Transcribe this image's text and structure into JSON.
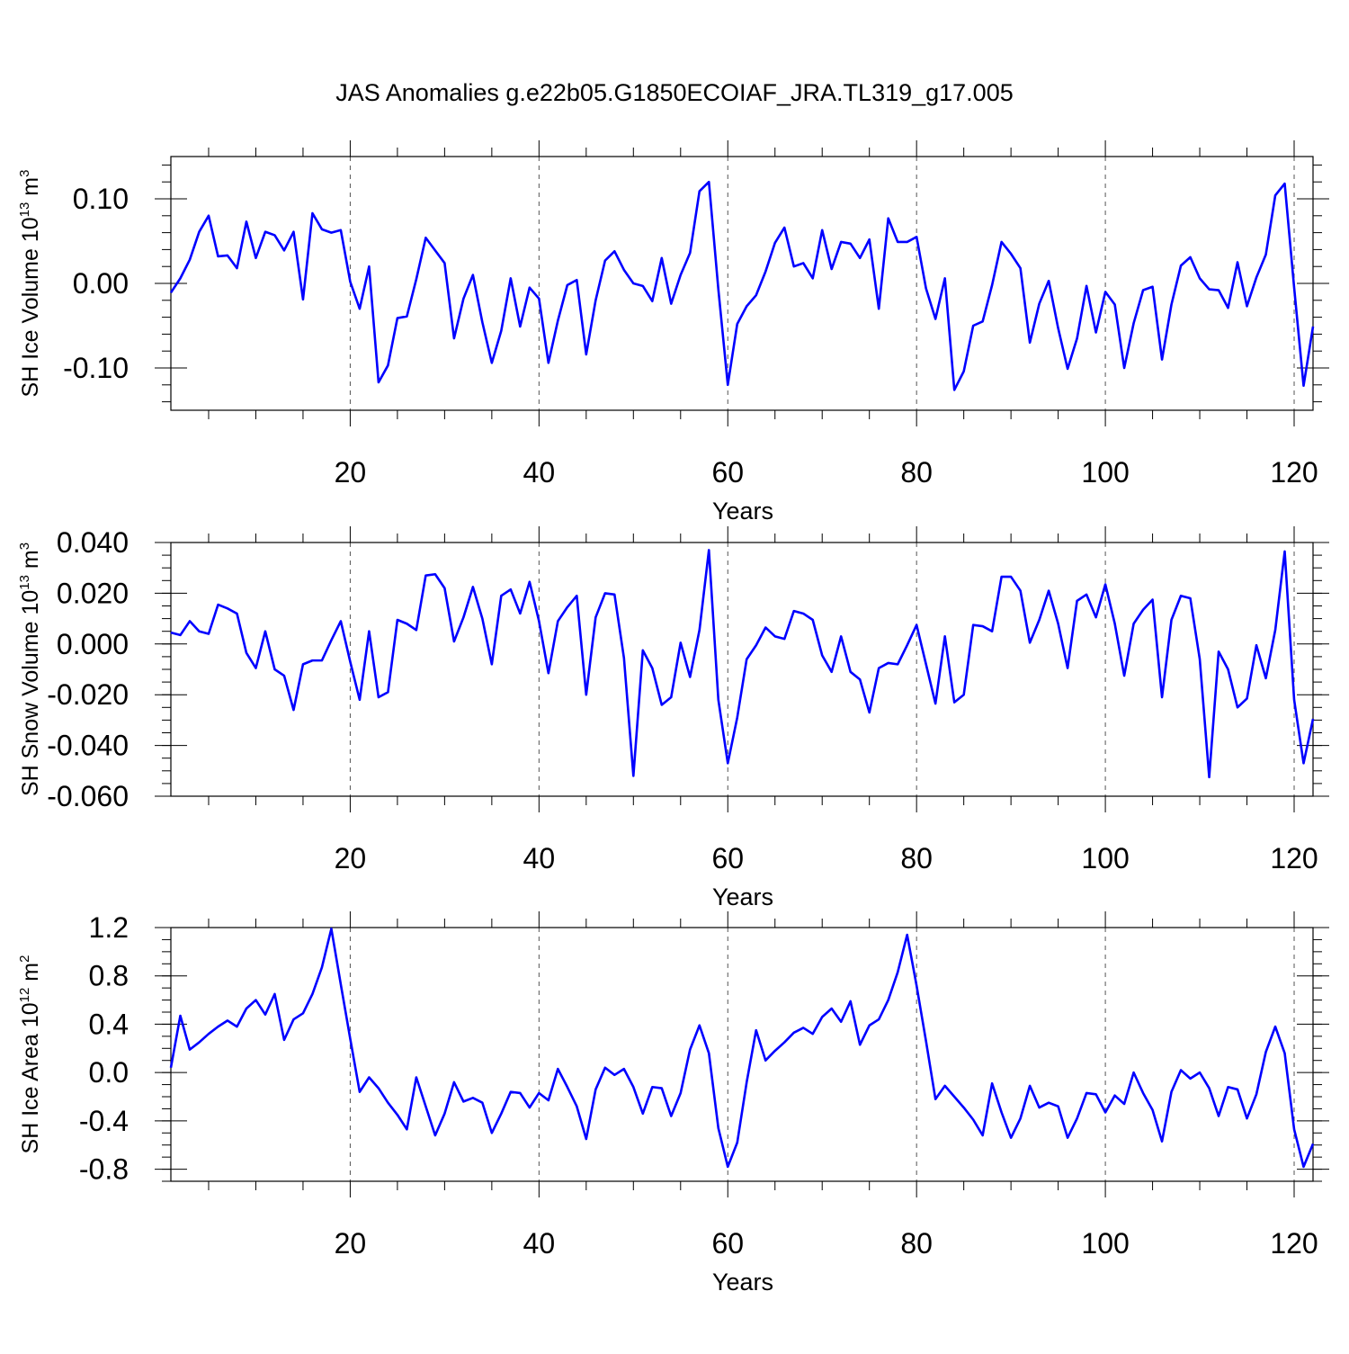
{
  "title": "JAS Anomalies g.e22b05.G1850ECOIAF_JRA.TL319_g17.005",
  "colors": {
    "series": "#0000ff",
    "axis": "#000000",
    "grid": "#555555"
  },
  "chart_data": [
    {
      "type": "line",
      "ylabel_main": "SH Ice Volume 10",
      "ylabel_exp": "13",
      "ylabel_unit": "m",
      "ylabel_unit_exp": "3",
      "xlabel": "Years",
      "xlim": [
        1,
        122
      ],
      "ylim": [
        -0.15,
        0.15
      ],
      "xticks": [
        20,
        40,
        60,
        80,
        100,
        120
      ],
      "yticks": [
        -0.1,
        0.0,
        0.1
      ],
      "ytick_labels": [
        "-0.10",
        "0.00",
        "0.10"
      ],
      "yminor_step": 0.02,
      "x_start": 1,
      "values": [
        -0.011,
        0.006,
        0.028,
        0.061,
        0.08,
        0.032,
        0.033,
        0.018,
        0.073,
        0.03,
        0.061,
        0.057,
        0.039,
        0.061,
        -0.019,
        0.083,
        0.064,
        0.06,
        0.063,
        0.002,
        -0.03,
        0.02,
        -0.117,
        -0.097,
        -0.041,
        -0.039,
        0.005,
        0.054,
        0.039,
        0.024,
        -0.065,
        -0.018,
        0.01,
        -0.046,
        -0.094,
        -0.056,
        0.006,
        -0.051,
        -0.005,
        -0.018,
        -0.094,
        -0.044,
        -0.002,
        0.004,
        -0.084,
        -0.02,
        0.027,
        0.038,
        0.016,
        0.0,
        -0.003,
        -0.021,
        0.03,
        -0.024,
        0.01,
        0.036,
        0.109,
        0.12,
        -0.007,
        -0.12,
        -0.048,
        -0.027,
        -0.014,
        0.014,
        0.048,
        0.066,
        0.02,
        0.024,
        0.006,
        0.063,
        0.017,
        0.049,
        0.047,
        0.03,
        0.052,
        -0.03,
        0.077,
        0.049,
        0.049,
        0.055,
        -0.006,
        -0.042,
        0.006,
        -0.126,
        -0.104,
        -0.05,
        -0.045,
        -0.002,
        0.049,
        0.035,
        0.018,
        -0.07,
        -0.024,
        0.003,
        -0.053,
        -0.101,
        -0.065,
        -0.003,
        -0.058,
        -0.01,
        -0.025,
        -0.1,
        -0.047,
        -0.008,
        -0.004,
        -0.09,
        -0.025,
        0.021,
        0.031,
        0.006,
        -0.007,
        -0.008,
        -0.029,
        0.025,
        -0.027,
        0.007,
        0.034,
        0.104,
        0.118,
        -0.005,
        -0.121,
        -0.051
      ]
    },
    {
      "type": "line",
      "ylabel_main": "SH Snow Volume 10",
      "ylabel_exp": "13",
      "ylabel_unit": "m",
      "ylabel_unit_exp": "3",
      "xlabel": "Years",
      "xlim": [
        1,
        122
      ],
      "ylim": [
        -0.06,
        0.04
      ],
      "xticks": [
        20,
        40,
        60,
        80,
        100,
        120
      ],
      "yticks": [
        -0.06,
        -0.04,
        -0.02,
        0.0,
        0.02,
        0.04
      ],
      "ytick_labels": [
        "-0.060",
        "-0.040",
        "-0.020",
        "0.000",
        "0.020",
        "0.040"
      ],
      "yminor_step": 0.005,
      "x_start": 1,
      "values": [
        0.0045,
        0.0035,
        0.009,
        0.005,
        0.004,
        0.0155,
        0.014,
        0.012,
        -0.0035,
        -0.0095,
        0.005,
        -0.01,
        -0.0125,
        -0.026,
        -0.008,
        -0.0065,
        -0.0065,
        0.0015,
        0.009,
        -0.007,
        -0.022,
        0.005,
        -0.021,
        -0.019,
        0.0095,
        0.008,
        0.0055,
        0.027,
        0.0275,
        0.022,
        0.001,
        0.0105,
        0.0225,
        0.01,
        -0.008,
        0.019,
        0.0215,
        0.012,
        0.0245,
        0.009,
        -0.0115,
        0.009,
        0.0145,
        0.019,
        -0.02,
        0.0105,
        0.02,
        0.0195,
        -0.0055,
        -0.052,
        -0.0025,
        -0.0095,
        -0.024,
        -0.021,
        0.0005,
        -0.013,
        0.0055,
        0.037,
        -0.022,
        -0.047,
        -0.029,
        -0.006,
        -0.0005,
        0.0065,
        0.003,
        0.002,
        0.013,
        0.012,
        0.0095,
        -0.0045,
        -0.011,
        0.003,
        -0.011,
        -0.014,
        -0.027,
        -0.0095,
        -0.0075,
        -0.008,
        -0.0005,
        0.0075,
        -0.008,
        -0.0235,
        0.003,
        -0.023,
        -0.02,
        0.0075,
        0.007,
        0.005,
        0.0265,
        0.0265,
        0.021,
        0.0005,
        0.0095,
        0.021,
        0.008,
        -0.0095,
        0.017,
        0.0195,
        0.0105,
        0.0235,
        0.008,
        -0.0125,
        0.008,
        0.0135,
        0.0175,
        -0.021,
        0.0095,
        0.019,
        0.018,
        -0.006,
        -0.0525,
        -0.003,
        -0.01,
        -0.025,
        -0.0215,
        -0.0005,
        -0.0135,
        0.0055,
        0.0365,
        -0.022,
        -0.047,
        -0.0295
      ]
    },
    {
      "type": "line",
      "ylabel_main": "SH Ice Area 10",
      "ylabel_exp": "12",
      "ylabel_unit": "m",
      "ylabel_unit_exp": "2",
      "xlabel": "Years",
      "xlim": [
        1,
        122
      ],
      "ylim": [
        -0.9,
        1.2
      ],
      "xticks": [
        20,
        40,
        60,
        80,
        100,
        120
      ],
      "yticks": [
        -0.8,
        -0.4,
        0.0,
        0.4,
        0.8,
        1.2
      ],
      "ytick_labels": [
        "-0.8",
        "-0.4",
        "0.0",
        "0.4",
        "0.8",
        "1.2"
      ],
      "yminor_step": 0.1,
      "x_start": 1,
      "values": [
        0.04,
        0.47,
        0.19,
        0.25,
        0.32,
        0.38,
        0.43,
        0.38,
        0.53,
        0.6,
        0.48,
        0.65,
        0.27,
        0.44,
        0.49,
        0.65,
        0.87,
        1.19,
        0.73,
        0.28,
        -0.16,
        -0.04,
        -0.13,
        -0.25,
        -0.35,
        -0.47,
        -0.04,
        -0.28,
        -0.52,
        -0.34,
        -0.08,
        -0.24,
        -0.21,
        -0.25,
        -0.5,
        -0.34,
        -0.16,
        -0.17,
        -0.29,
        -0.17,
        -0.23,
        0.03,
        -0.12,
        -0.28,
        -0.55,
        -0.14,
        0.04,
        -0.02,
        0.03,
        -0.12,
        -0.34,
        -0.12,
        -0.13,
        -0.36,
        -0.17,
        0.19,
        0.39,
        0.16,
        -0.46,
        -0.78,
        -0.58,
        -0.08,
        0.35,
        0.1,
        0.18,
        0.25,
        0.33,
        0.37,
        0.32,
        0.46,
        0.53,
        0.42,
        0.59,
        0.23,
        0.39,
        0.44,
        0.6,
        0.83,
        1.14,
        0.72,
        0.26,
        -0.22,
        -0.11,
        -0.2,
        -0.29,
        -0.39,
        -0.52,
        -0.09,
        -0.33,
        -0.54,
        -0.38,
        -0.11,
        -0.29,
        -0.25,
        -0.28,
        -0.54,
        -0.38,
        -0.17,
        -0.18,
        -0.33,
        -0.19,
        -0.26,
        0.0,
        -0.17,
        -0.31,
        -0.57,
        -0.16,
        0.02,
        -0.05,
        0.0,
        -0.13,
        -0.36,
        -0.12,
        -0.14,
        -0.38,
        -0.18,
        0.17,
        0.38,
        0.16,
        -0.47,
        -0.78,
        -0.59
      ]
    }
  ]
}
